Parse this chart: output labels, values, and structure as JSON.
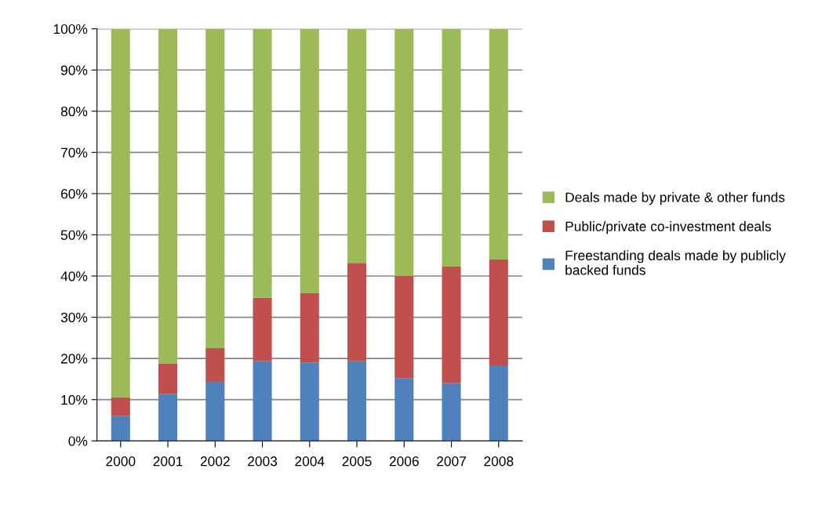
{
  "chart_data": {
    "type": "bar",
    "stacked": true,
    "categories": [
      "2000",
      "2001",
      "2002",
      "2003",
      "2004",
      "2005",
      "2006",
      "2007",
      "2008"
    ],
    "series": [
      {
        "name": "Freestanding deals made by publicly backed funds",
        "color": "#4f81bd",
        "values": [
          6.1,
          11.4,
          14.3,
          19.3,
          19.0,
          19.3,
          15.2,
          14.0,
          18.3
        ]
      },
      {
        "name": "Public/private co-investment deals",
        "color": "#c0504d",
        "values": [
          4.4,
          7.3,
          8.2,
          15.4,
          16.8,
          23.9,
          24.8,
          28.3,
          25.7
        ]
      },
      {
        "name": "Deals made by private & other funds",
        "color": "#9bbb59",
        "values": [
          89.5,
          81.3,
          77.5,
          65.3,
          64.2,
          56.8,
          60.0,
          57.7,
          56.0
        ]
      }
    ],
    "ylim": [
      0,
      100
    ],
    "yticks": [
      {
        "value": 0,
        "label": "0%"
      },
      {
        "value": 10,
        "label": "10%"
      },
      {
        "value": 20,
        "label": "20%"
      },
      {
        "value": 30,
        "label": "30%"
      },
      {
        "value": 40,
        "label": "40%"
      },
      {
        "value": 50,
        "label": "50%"
      },
      {
        "value": 60,
        "label": "60%"
      },
      {
        "value": 70,
        "label": "70%"
      },
      {
        "value": 80,
        "label": "80%"
      },
      {
        "value": 90,
        "label": "90%"
      },
      {
        "value": 100,
        "label": "100%"
      }
    ],
    "grid": "y",
    "legend": "right"
  }
}
